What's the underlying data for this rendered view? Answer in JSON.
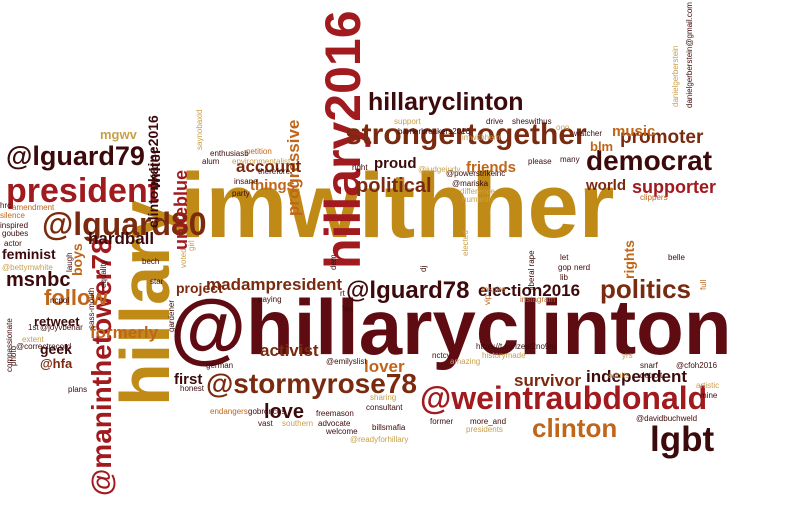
{
  "palette": {
    "gold": "#c08a17",
    "maroon": "#5e0c12",
    "red": "#a01a1e",
    "brown": "#7a2a0e",
    "crimson": "#b5232a",
    "orange": "#c0661a",
    "tan": "#c9a04a",
    "light": "#d9b87a",
    "dark": "#3d0a0c"
  },
  "words": [
    {
      "text": "imwithher",
      "color": "gold"
    },
    {
      "text": "@hillaryclinton",
      "color": "maroon"
    },
    {
      "text": "hillary",
      "color": "gold"
    },
    {
      "text": "hillary2016",
      "color": "red"
    },
    {
      "text": "@weintraubdonald",
      "color": "red"
    },
    {
      "text": "@maninthetower78",
      "color": "red"
    },
    {
      "text": "president",
      "color": "red"
    },
    {
      "text": "strongertogether",
      "color": "brown"
    },
    {
      "text": "hillaryclinton",
      "color": "dark"
    },
    {
      "text": "@lguard80",
      "color": "brown"
    },
    {
      "text": "@lguard79",
      "color": "dark"
    },
    {
      "text": "@stormyrose78",
      "color": "brown"
    },
    {
      "text": "democrat",
      "color": "dark"
    },
    {
      "text": "politics",
      "color": "brown"
    },
    {
      "text": "@lguard78",
      "color": "dark"
    },
    {
      "text": "lgbt",
      "color": "dark"
    },
    {
      "text": "clinton",
      "color": "orange"
    },
    {
      "text": "promoter",
      "color": "brown"
    },
    {
      "text": "follow",
      "color": "orange"
    },
    {
      "text": "madampresident",
      "color": "brown"
    },
    {
      "text": "political",
      "color": "brown"
    },
    {
      "text": "uniteblue",
      "color": "red"
    },
    {
      "text": "progressive",
      "color": "orange"
    },
    {
      "text": "msnbc",
      "color": "dark"
    },
    {
      "text": "love",
      "color": "dark"
    },
    {
      "text": "supporter",
      "color": "red"
    },
    {
      "text": "election2016",
      "color": "dark"
    },
    {
      "text": "hardball",
      "color": "dark"
    },
    {
      "text": "account",
      "color": "brown"
    },
    {
      "text": "activist",
      "color": "brown"
    },
    {
      "text": "independent",
      "color": "dark"
    },
    {
      "text": "clintonkaine2016",
      "color": "dark"
    },
    {
      "text": "survivor",
      "color": "brown"
    },
    {
      "text": "formerly",
      "color": "orange"
    },
    {
      "text": "lover",
      "color": "orange"
    },
    {
      "text": "feminist",
      "color": "dark"
    },
    {
      "text": "retweet",
      "color": "dark"
    },
    {
      "text": "writer",
      "color": "dark"
    },
    {
      "text": "music",
      "color": "orange"
    },
    {
      "text": "things",
      "color": "orange"
    },
    {
      "text": "friends",
      "color": "orange"
    },
    {
      "text": "world",
      "color": "brown"
    },
    {
      "text": "proud",
      "color": "dark"
    },
    {
      "text": "first",
      "color": "dark"
    },
    {
      "text": "project",
      "color": "brown"
    },
    {
      "text": "geek",
      "color": "dark"
    },
    {
      "text": "boys",
      "color": "orange"
    },
    {
      "text": "mgwv",
      "color": "tan"
    },
    {
      "text": "@hfa",
      "color": "brown"
    },
    {
      "text": "blm",
      "color": "orange"
    },
    {
      "text": "rights",
      "color": "orange"
    },
    {
      "text": "artistic",
      "color": "tan"
    },
    {
      "text": "@emilyslist",
      "color": "dark"
    },
    {
      "text": "@cfoh2016",
      "color": "dark"
    },
    {
      "text": "@correctrecord",
      "color": "dark"
    },
    {
      "text": "@davidbuchweld",
      "color": "dark"
    },
    {
      "text": "@mariska",
      "color": "dark"
    },
    {
      "text": "@powerstrikeinc",
      "color": "dark"
    },
    {
      "text": "@judgejudy",
      "color": "tan"
    },
    {
      "text": "barrierbreakers2016",
      "color": "dark"
    },
    {
      "text": "sheswithus",
      "color": "dark"
    },
    {
      "text": "imwithhem",
      "color": "tan"
    },
    {
      "text": "enthusiasb",
      "color": "dark"
    },
    {
      "text": "saynobaxid",
      "color": "tan"
    },
    {
      "text": "petition",
      "color": "orange"
    },
    {
      "text": "environmentalist",
      "color": "tan"
    },
    {
      "text": "therefore",
      "color": "dark"
    },
    {
      "text": "alum",
      "color": "dark"
    },
    {
      "text": "insane",
      "color": "dark"
    },
    {
      "text": "party",
      "color": "dark"
    },
    {
      "text": "right",
      "color": "dark"
    },
    {
      "text": "difference",
      "color": "tan"
    },
    {
      "text": "humanity",
      "color": "tan"
    },
    {
      "text": "please",
      "color": "dark"
    },
    {
      "text": "many",
      "color": "dark"
    },
    {
      "text": "support",
      "color": "tan"
    },
    {
      "text": "drive",
      "color": "dark"
    },
    {
      "text": "watcher",
      "color": "dark"
    },
    {
      "text": "nerd",
      "color": "dark"
    },
    {
      "text": "gop",
      "color": "dark"
    },
    {
      "text": "lib",
      "color": "dark"
    },
    {
      "text": "let",
      "color": "dark"
    },
    {
      "text": "belle",
      "color": "dark"
    },
    {
      "text": "clippers",
      "color": "orange"
    },
    {
      "text": "silence",
      "color": "orange"
    },
    {
      "text": "amendment",
      "color": "orange"
    },
    {
      "text": "inspired",
      "color": "dark"
    },
    {
      "text": "goubes",
      "color": "dark"
    },
    {
      "text": "actor",
      "color": "dark"
    },
    {
      "text": "laugh",
      "color": "dark"
    },
    {
      "text": "equality",
      "color": "dark"
    },
    {
      "text": "ncpol",
      "color": "dark"
    },
    {
      "text": "star",
      "color": "dark"
    },
    {
      "text": "gardener",
      "color": "dark"
    },
    {
      "text": "paying",
      "color": "dark"
    },
    {
      "text": "tea",
      "color": "dark"
    },
    {
      "text": "vip",
      "color": "orange"
    },
    {
      "text": "inspire",
      "color": "orange"
    },
    {
      "text": "instagram",
      "color": "orange"
    },
    {
      "text": "https://t.co/lzeje2no9m",
      "color": "dark"
    },
    {
      "text": "historymade",
      "color": "tan"
    },
    {
      "text": "amazing",
      "color": "tan"
    },
    {
      "text": "nctcv",
      "color": "dark"
    },
    {
      "text": "yrs",
      "color": "tan"
    },
    {
      "text": "snarf",
      "color": "dark"
    },
    {
      "text": "adults",
      "color": "tan"
    },
    {
      "text": "detroit",
      "color": "dark"
    },
    {
      "text": "mine",
      "color": "dark"
    },
    {
      "text": "german",
      "color": "dark"
    },
    {
      "text": "honest",
      "color": "dark"
    },
    {
      "text": "endangers",
      "color": "orange"
    },
    {
      "text": "gobroncos",
      "color": "dark"
    },
    {
      "text": "vast",
      "color": "dark"
    },
    {
      "text": "southern",
      "color": "tan"
    },
    {
      "text": "freemason",
      "color": "dark"
    },
    {
      "text": "advocate",
      "color": "dark"
    },
    {
      "text": "welcome",
      "color": "dark"
    },
    {
      "text": "sharing",
      "color": "tan"
    },
    {
      "text": "billsmafia",
      "color": "dark"
    },
    {
      "text": "consultant",
      "color": "dark"
    },
    {
      "text": "@readyforhillary",
      "color": "tan"
    },
    {
      "text": "former",
      "color": "dark"
    },
    {
      "text": "more_and",
      "color": "dark"
    },
    {
      "text": "presidents",
      "color": "tan"
    },
    {
      "text": "compassionate",
      "color": "dark"
    },
    {
      "text": "1st",
      "color": "dark"
    },
    {
      "text": "@joyvbehar",
      "color": "dark"
    },
    {
      "text": "extent",
      "color": "tan"
    },
    {
      "text": "photo",
      "color": "dark"
    },
    {
      "text": "plans",
      "color": "dark"
    },
    {
      "text": "sass-mouth",
      "color": "dark"
    },
    {
      "text": "bech",
      "color": "dark"
    },
    {
      "text": "voted",
      "color": "tan"
    },
    {
      "text": "girl",
      "color": "tan"
    },
    {
      "text": "dem",
      "color": "dark"
    },
    {
      "text": "dj",
      "color": "dark"
    },
    {
      "text": "rt",
      "color": "dark"
    },
    {
      "text": "elected",
      "color": "tan"
    },
    {
      "text": "liberal rape",
      "color": "dark"
    },
    {
      "text": "full",
      "color": "orange"
    },
    {
      "text": "danielgerberstein",
      "color": "tan"
    },
    {
      "text": "danielgerberstein@gmail.com",
      "color": "dark"
    },
    {
      "text": "hrc",
      "color": "dark"
    },
    {
      "text": "@bettymwhite",
      "color": "tan"
    },
    {
      "text": "ooo",
      "color": "tan"
    }
  ]
}
